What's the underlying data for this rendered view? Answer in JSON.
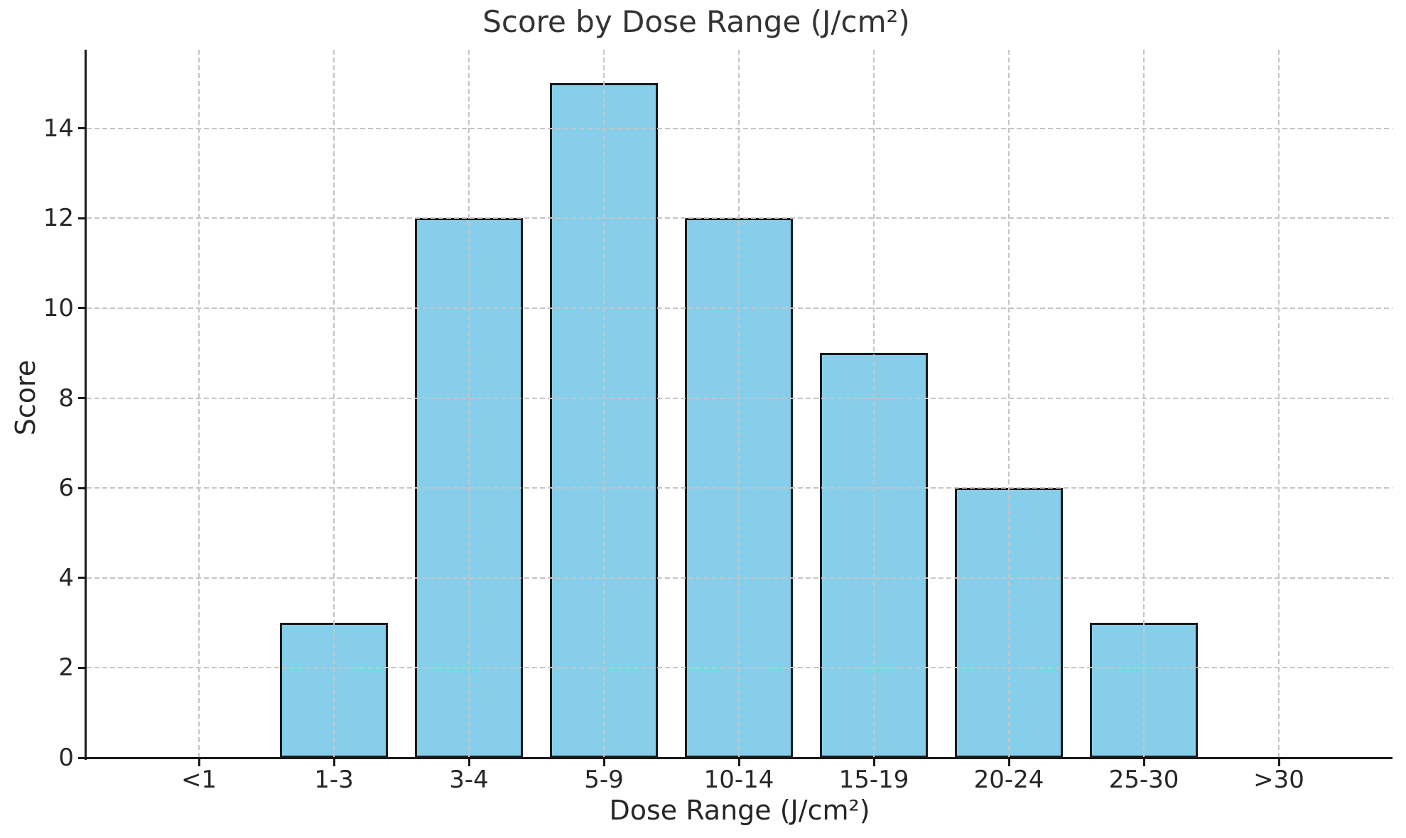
{
  "chart_data": {
    "type": "bar",
    "title": "Score by Dose Range (J/cm²)",
    "xlabel": "Dose Range (J/cm²)",
    "ylabel": "Score",
    "categories": [
      "<1",
      "1-3",
      "3-4",
      "5-9",
      "10-14",
      "15-19",
      "20-24",
      "25-30",
      ">30"
    ],
    "values": [
      0,
      3,
      12,
      15,
      12,
      9,
      6,
      3,
      0
    ],
    "yticks": [
      0,
      2,
      4,
      6,
      8,
      10,
      12,
      14
    ],
    "ylim": [
      0,
      15.75
    ],
    "grid": "both-dashed",
    "grid_above_bars": true,
    "legend": "none",
    "spines": [
      "left",
      "bottom"
    ],
    "colors": {
      "background": "#ffffff",
      "bar_fill": "#87CEEB",
      "bar_edge": "#1a1a1a",
      "grid": "#c5c5c5",
      "spine": "#1a1a1a",
      "tick_text": "#262626",
      "title_text": "#333333"
    }
  }
}
